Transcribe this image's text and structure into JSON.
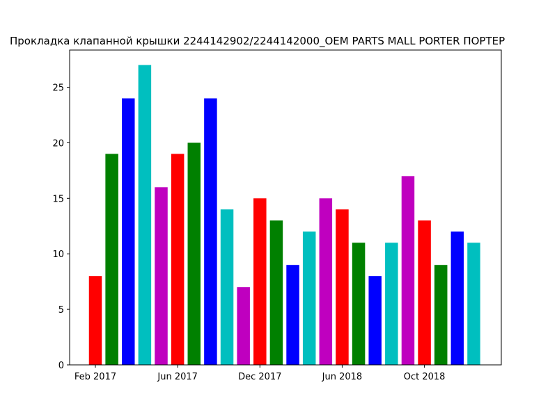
{
  "chart_data": {
    "type": "bar",
    "title": "Прокладка клапанной крышки 2244142902/2244142000_OEM PARTS MALL PORTER ПОРТЕР",
    "categories": [
      "Feb 2017",
      null,
      null,
      null,
      null,
      "Jun 2017",
      null,
      null,
      null,
      null,
      "Dec 2017",
      null,
      null,
      null,
      null,
      "Jun 2018",
      null,
      null,
      null,
      null,
      "Oct 2018",
      null,
      null,
      null
    ],
    "values": [
      8,
      19,
      24,
      27,
      16,
      19,
      20,
      24,
      14,
      7,
      15,
      13,
      9,
      12,
      15,
      14,
      11,
      8,
      11,
      17,
      13,
      9,
      12,
      11
    ],
    "colors": [
      "#ff0000",
      "#008000",
      "#0000ff",
      "#00bfbf",
      "#bf00bf",
      "#ff0000",
      "#008000",
      "#0000ff",
      "#00bfbf",
      "#bf00bf",
      "#ff0000",
      "#008000",
      "#0000ff",
      "#00bfbf",
      "#bf00bf",
      "#ff0000",
      "#008000",
      "#0000ff",
      "#00bfbf",
      "#bf00bf",
      "#ff0000",
      "#008000",
      "#0000ff",
      "#00bfbf"
    ],
    "ylim": [
      0,
      28.35
    ],
    "yticks": [
      0,
      5,
      10,
      15,
      20,
      25
    ],
    "grid": false
  }
}
